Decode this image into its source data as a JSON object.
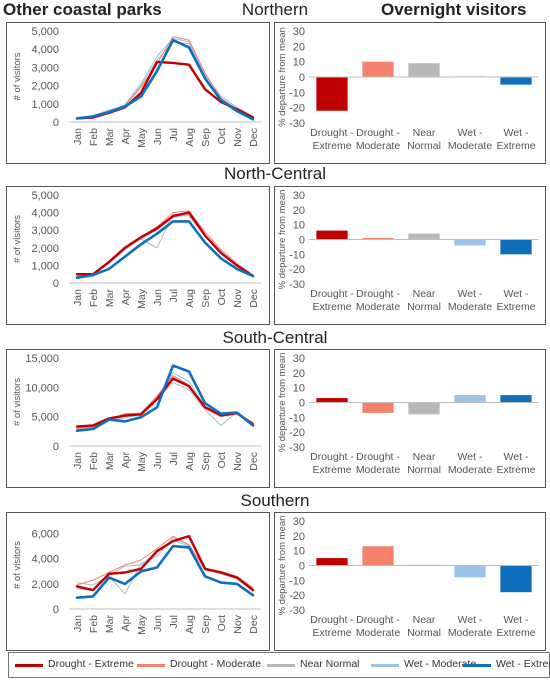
{
  "headers": {
    "left": "Other coastal parks",
    "right": "Overnight visitors"
  },
  "series": [
    {
      "key": "de",
      "name": "Drought - Extreme",
      "color": "#c00000"
    },
    {
      "key": "dm",
      "name": "Drought - Moderate",
      "color": "#f4826e"
    },
    {
      "key": "nn",
      "name": "Near Normal",
      "color": "#b8b8b8"
    },
    {
      "key": "wm",
      "name": "Wet -  Moderate",
      "color": "#9dc3e6"
    },
    {
      "key": "we",
      "name": "Wet - Extreme",
      "color": "#0f6fbd"
    }
  ],
  "chart_data": [
    {
      "region": "Northern",
      "type": "line",
      "ylabel": "# of visitors",
      "ylim": [
        0,
        5000
      ],
      "yticks": [
        "0",
        "1,000",
        "2,000",
        "3,000",
        "4,000",
        "5,000"
      ],
      "ytick_values": [
        0,
        1000,
        2000,
        3000,
        4000,
        5000
      ],
      "categories": [
        "Jan",
        "Feb",
        "Mar",
        "Apr",
        "May",
        "Jun",
        "Jul",
        "Aug",
        "Sep",
        "Oct",
        "Nov",
        "Dec"
      ],
      "series": [
        {
          "name": "Drought - Extreme",
          "values": [
            200,
            250,
            500,
            800,
            1600,
            3300,
            3250,
            3150,
            1800,
            1100,
            700,
            250
          ]
        },
        {
          "name": "Drought - Moderate",
          "values": [
            250,
            300,
            550,
            900,
            1900,
            3200,
            4700,
            4500,
            2700,
            1300,
            700,
            200
          ]
        },
        {
          "name": "Near Normal",
          "values": [
            200,
            350,
            650,
            900,
            2000,
            3400,
            4400,
            4300,
            2600,
            1400,
            800,
            300
          ]
        },
        {
          "name": "Wet -  Moderate",
          "values": [
            200,
            350,
            600,
            950,
            2100,
            3600,
            4600,
            4400,
            2600,
            1400,
            800,
            300
          ]
        },
        {
          "name": "Wet - Extreme",
          "values": [
            200,
            300,
            550,
            850,
            1400,
            2800,
            4500,
            4100,
            2400,
            1200,
            600,
            150
          ]
        }
      ]
    },
    {
      "region": "North-Central",
      "type": "line",
      "ylabel": "# of visitors",
      "ylim": [
        0,
        5000
      ],
      "yticks": [
        "0",
        "1,000",
        "2,000",
        "3,000",
        "4,000",
        "5,000"
      ],
      "ytick_values": [
        0,
        1000,
        2000,
        3000,
        4000,
        5000
      ],
      "categories": [
        "Jan",
        "Feb",
        "Mar",
        "Apr",
        "May",
        "Jun",
        "Jul",
        "Aug",
        "Sep",
        "Oct",
        "Nov",
        "Dec"
      ],
      "series": [
        {
          "name": "Drought - Extreme",
          "values": [
            500,
            500,
            1200,
            2000,
            2600,
            3100,
            3800,
            4000,
            2700,
            1700,
            1000,
            400
          ]
        },
        {
          "name": "Drought - Moderate",
          "values": [
            400,
            500,
            1200,
            2000,
            2600,
            3200,
            4000,
            4100,
            2900,
            1900,
            1100,
            450
          ]
        },
        {
          "name": "Near Normal",
          "values": [
            400,
            450,
            1100,
            1900,
            2500,
            2000,
            3900,
            3800,
            2700,
            1800,
            1000,
            400
          ]
        },
        {
          "name": "Wet -  Moderate",
          "values": [
            400,
            500,
            1100,
            1900,
            2500,
            3000,
            3700,
            3900,
            2700,
            1800,
            1000,
            400
          ]
        },
        {
          "name": "Wet - Extreme",
          "values": [
            300,
            450,
            800,
            1500,
            2200,
            2800,
            3500,
            3500,
            2300,
            1400,
            800,
            400
          ]
        }
      ]
    },
    {
      "region": "South-Central",
      "type": "line",
      "ylabel": "# of visitors",
      "ylim": [
        0,
        15000
      ],
      "yticks": [
        "0",
        "5,000",
        "10,000",
        "15,000"
      ],
      "ytick_values": [
        0,
        5000,
        10000,
        15000
      ],
      "categories": [
        "Jan",
        "Feb",
        "Mar",
        "Apr",
        "May",
        "Jun",
        "Jul",
        "Aug",
        "Sep",
        "Oct",
        "Nov",
        "Dec"
      ],
      "series": [
        {
          "name": "Drought - Extreme",
          "values": [
            3300,
            3500,
            4700,
            5200,
            5400,
            8000,
            11500,
            10200,
            6600,
            5200,
            5600,
            3700
          ]
        },
        {
          "name": "Drought - Moderate",
          "values": [
            3000,
            3200,
            4500,
            5500,
            5600,
            8500,
            12000,
            10400,
            6700,
            5600,
            5500,
            4000
          ]
        },
        {
          "name": "Near Normal",
          "values": [
            3000,
            3300,
            4400,
            5000,
            5200,
            7800,
            10800,
            9600,
            6200,
            3500,
            5800,
            3500
          ]
        },
        {
          "name": "Wet -  Moderate",
          "values": [
            2800,
            3000,
            4300,
            4800,
            5300,
            8200,
            12500,
            11000,
            6800,
            5000,
            5400,
            3800
          ]
        },
        {
          "name": "Wet - Extreme",
          "values": [
            2600,
            2900,
            4500,
            4200,
            4900,
            6600,
            13700,
            12700,
            7300,
            5500,
            5700,
            3500
          ]
        }
      ]
    },
    {
      "region": "Southern",
      "type": "line",
      "ylabel": "# of visitors",
      "ylim": [
        0,
        7000
      ],
      "yticks": [
        "0",
        "2,000",
        "4,000",
        "6,000"
      ],
      "ytick_values": [
        0,
        2000,
        4000,
        6000
      ],
      "categories": [
        "Jan",
        "Feb",
        "Mar",
        "Apr",
        "May",
        "Jun",
        "Jul",
        "Aug",
        "Sep",
        "Oct",
        "Nov",
        "Dec"
      ],
      "series": [
        {
          "name": "Drought - Extreme",
          "values": [
            1800,
            1500,
            2800,
            2900,
            3200,
            4600,
            5400,
            5800,
            3200,
            2900,
            2500,
            1500
          ]
        },
        {
          "name": "Drought - Moderate",
          "values": [
            1900,
            2300,
            2900,
            3500,
            3900,
            4800,
            5800,
            5100,
            3200,
            3000,
            2600,
            1700
          ]
        },
        {
          "name": "Near Normal",
          "values": [
            2100,
            1900,
            2600,
            1200,
            3600,
            4200,
            5700,
            5100,
            3100,
            2800,
            2400,
            1400
          ]
        },
        {
          "name": "Wet -  Moderate",
          "values": [
            1600,
            1500,
            2700,
            3400,
            3500,
            4500,
            5500,
            5000,
            3100,
            2900,
            2400,
            1600
          ]
        },
        {
          "name": "Wet - Extreme",
          "values": [
            900,
            1000,
            2500,
            2000,
            3000,
            3300,
            5000,
            4900,
            2600,
            2100,
            2000,
            1100
          ]
        }
      ]
    },
    {
      "region": "Northern",
      "type": "bar",
      "ylabel": "% departure from mean",
      "ylim": [
        -30,
        30
      ],
      "yticks": [
        "30",
        "20",
        "10",
        "0",
        "-10",
        "-20",
        "-30"
      ],
      "ytick_values": [
        30,
        20,
        10,
        0,
        -10,
        -20,
        -30
      ],
      "categories": [
        "Drought - Extreme",
        "Drought - Moderate",
        "Near Normal",
        "Wet - Moderate",
        "Wet - Extreme"
      ],
      "values": [
        -22,
        10,
        9,
        0.5,
        -5
      ]
    },
    {
      "region": "North-Central",
      "type": "bar",
      "ylabel": "% departure from mean",
      "ylim": [
        -30,
        30
      ],
      "yticks": [
        "30",
        "20",
        "10",
        "0",
        "-10",
        "-20",
        "-30"
      ],
      "ytick_values": [
        30,
        20,
        10,
        0,
        -10,
        -20,
        -30
      ],
      "categories": [
        "Drought - Extreme",
        "Drought - Moderate",
        "Near Normal",
        "Wet - Moderate",
        "Wet - Extreme"
      ],
      "values": [
        6,
        1,
        4,
        -4,
        -10
      ]
    },
    {
      "region": "South-Central",
      "type": "bar",
      "ylabel": "% departure from mean",
      "ylim": [
        -30,
        30
      ],
      "yticks": [
        "30",
        "20",
        "10",
        "0",
        "-10",
        "-20",
        "-30"
      ],
      "ytick_values": [
        30,
        20,
        10,
        0,
        -10,
        -20,
        -30
      ],
      "categories": [
        "Drought - Extreme",
        "Drought - Moderate",
        "Near Normal",
        "Wet - Moderate",
        "Wet - Extreme"
      ],
      "values": [
        3,
        -7,
        -8,
        5,
        5
      ]
    },
    {
      "region": "Southern",
      "type": "bar",
      "ylabel": "% departure from mean",
      "ylim": [
        -30,
        30
      ],
      "yticks": [
        "30",
        "20",
        "10",
        "0",
        "-10",
        "-20",
        "-30"
      ],
      "ytick_values": [
        30,
        20,
        10,
        0,
        -10,
        -20,
        -30
      ],
      "categories": [
        "Drought - Extreme",
        "Drought - Moderate",
        "Near Normal",
        "Wet - Moderate",
        "Wet - Extreme"
      ],
      "values": [
        5,
        13,
        0.5,
        -8,
        -18
      ]
    }
  ]
}
